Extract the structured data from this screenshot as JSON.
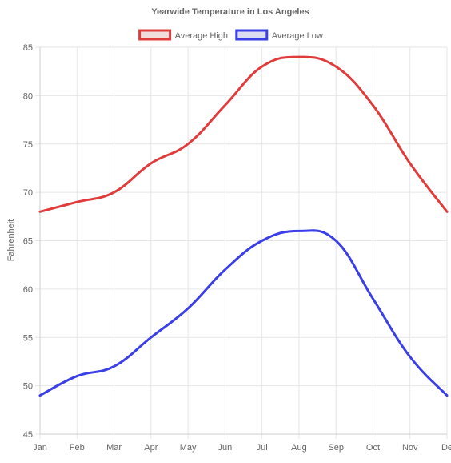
{
  "chart_data": {
    "type": "line",
    "title": "Yearwide Temperature in Los Angeles",
    "xlabel": "",
    "ylabel": "Fahrenheit",
    "categories": [
      "Jan",
      "Feb",
      "Mar",
      "Apr",
      "May",
      "Jun",
      "Jul",
      "Aug",
      "Sep",
      "Oct",
      "Nov",
      "De"
    ],
    "ylim": [
      45,
      85
    ],
    "yticks": [
      45,
      50,
      55,
      60,
      65,
      70,
      75,
      80,
      85
    ],
    "grid": true,
    "legend_position": "top-center",
    "series": [
      {
        "name": "Average High",
        "color": "#e03c3c",
        "fill": "#f2dcdc",
        "values": [
          68,
          69,
          70,
          73,
          75,
          79,
          83,
          84,
          83,
          79,
          73,
          68
        ]
      },
      {
        "name": "Average Low",
        "color": "#3b3fe6",
        "fill": "#dcddf2",
        "values": [
          49,
          51,
          52,
          55,
          58,
          62,
          65,
          66,
          65,
          59,
          53,
          49
        ]
      }
    ]
  }
}
